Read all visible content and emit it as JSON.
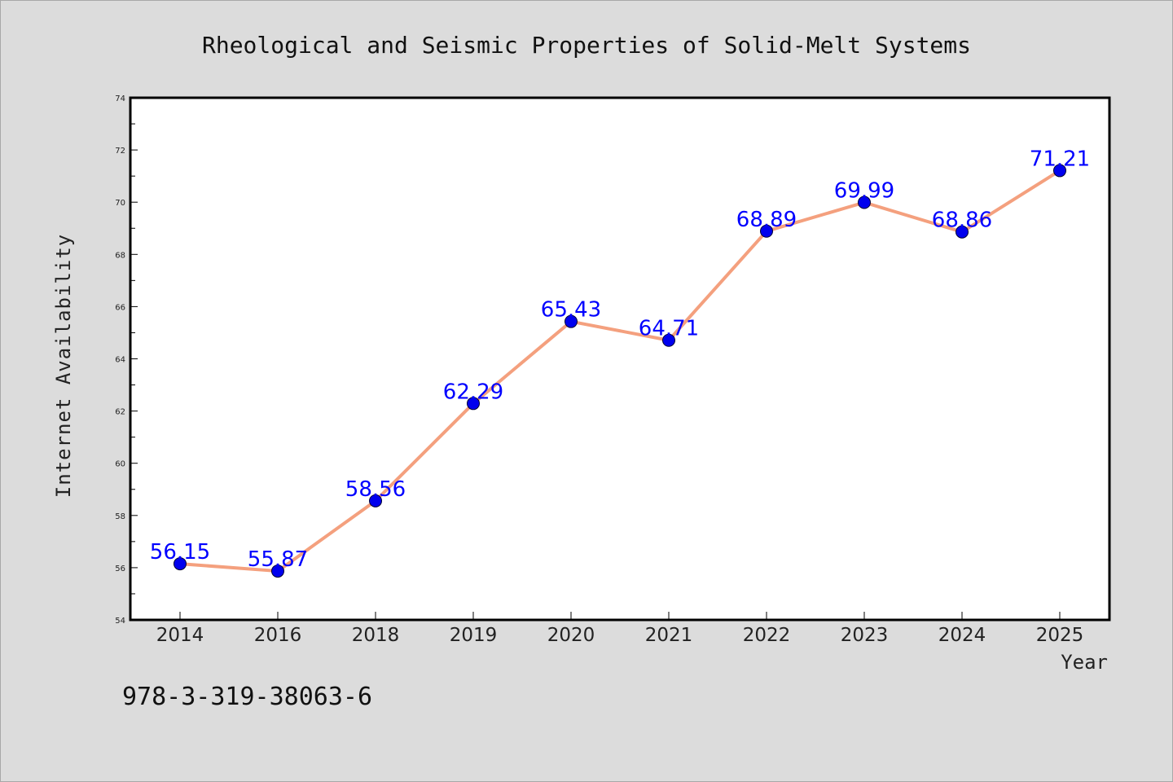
{
  "chart_data": {
    "type": "line",
    "title": "Rheological and Seismic Properties of Solid-Melt Systems",
    "xlabel": "Year",
    "ylabel": "Internet Availability",
    "categories": [
      "2014",
      "2016",
      "2018",
      "2019",
      "2020",
      "2021",
      "2022",
      "2023",
      "2024",
      "2025"
    ],
    "series": [
      {
        "values": [
          56.15,
          55.87,
          58.56,
          62.29,
          65.43,
          64.71,
          68.89,
          69.99,
          68.86,
          71.21
        ],
        "labels": [
          "56.15",
          "55.87",
          "58.56",
          "62.29",
          "65.43",
          "64.71",
          "68.89",
          "69.99",
          "68.86",
          "71.21"
        ]
      }
    ],
    "ylim": [
      54,
      74
    ],
    "yticks": [
      "54",
      "56",
      "58",
      "60",
      "62",
      "64",
      "66",
      "68",
      "70",
      "72",
      "74"
    ],
    "grid": false,
    "legend": "none",
    "colors": {
      "line": "#f4a07e",
      "marker": "#0000ee",
      "data_label": "#0000ff",
      "background": "#dcdcdc",
      "plot_background": "#ffffff"
    }
  },
  "footnote": "978-3-319-38063-6"
}
